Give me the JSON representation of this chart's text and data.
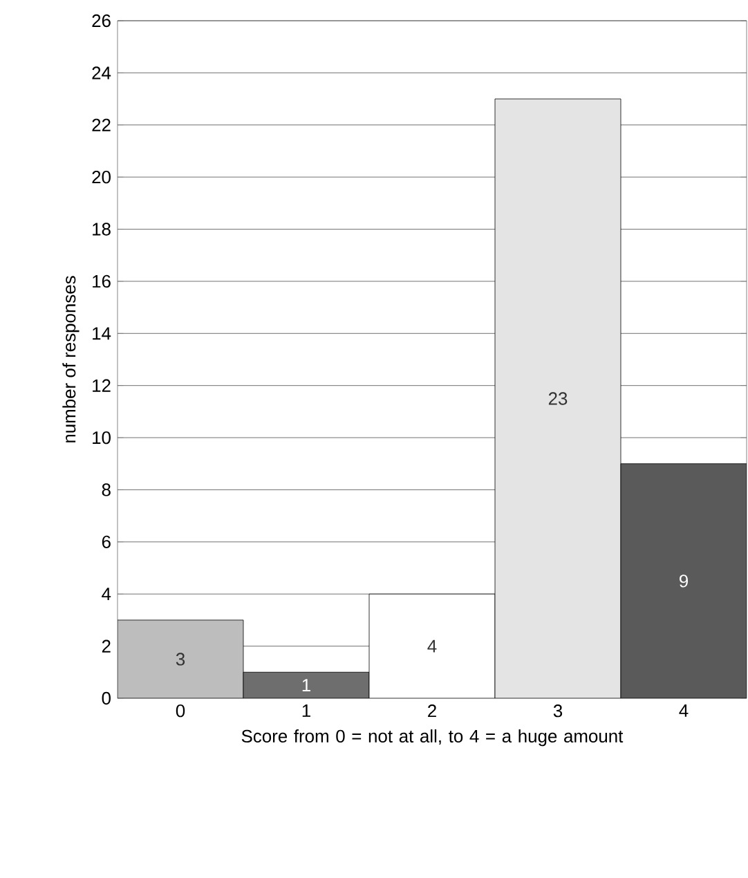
{
  "chart_data": {
    "type": "bar",
    "xlabel": "Score from 0 = not at all, to 4 = a huge amount",
    "ylabel": "number of responses",
    "categories": [
      "0",
      "1",
      "2",
      "3",
      "4"
    ],
    "values": [
      3,
      1,
      4,
      23,
      9
    ],
    "colors": [
      "#bdbdbd",
      "#6e6e6e",
      "#ffffff",
      "#e4e4e4",
      "#5a5a5a"
    ],
    "ylim": [
      0,
      26
    ],
    "yticks": [
      0,
      2,
      4,
      6,
      8,
      10,
      12,
      14,
      16,
      18,
      20,
      22,
      24,
      26
    ],
    "grid": "y",
    "data_labels": true
  }
}
